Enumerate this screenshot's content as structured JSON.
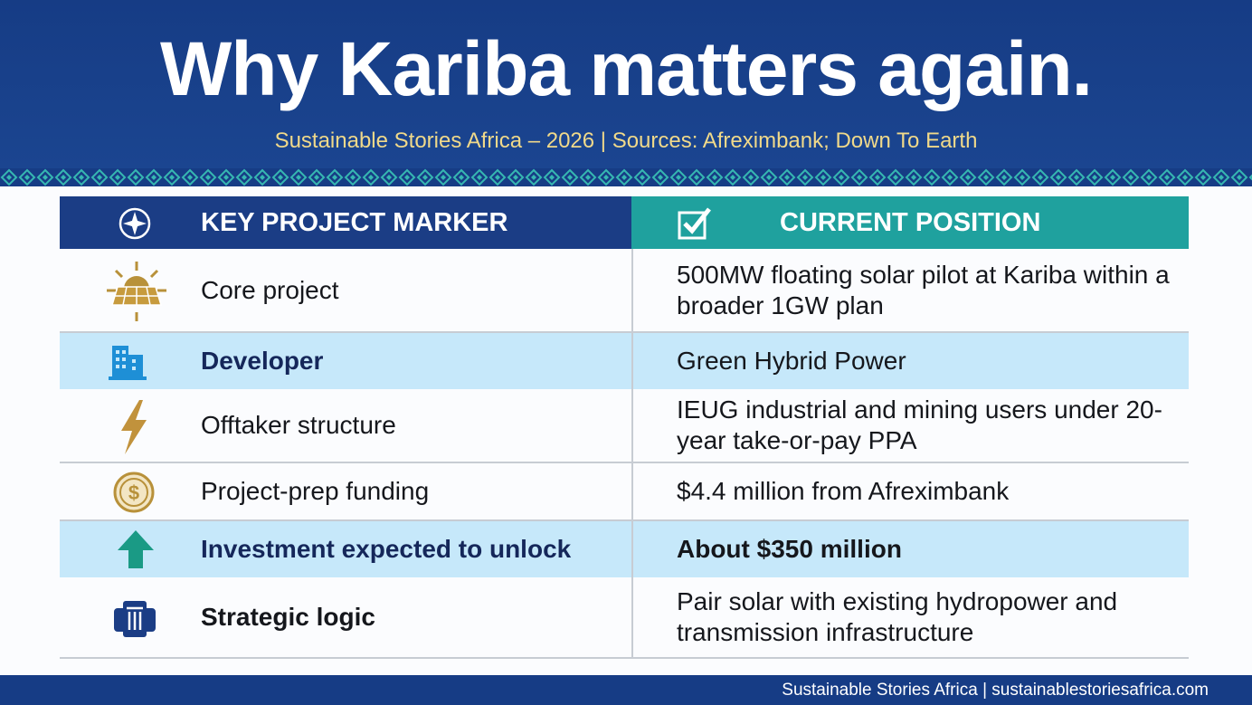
{
  "header": {
    "title": "Why Kariba matters again.",
    "subtitle": "Sustainable Stories Africa – 2026  |  Sources: Afreximbank; Down To Earth"
  },
  "table": {
    "headers": [
      "KEY PROJECT MARKER",
      "CURRENT POSITION"
    ],
    "rows": [
      [
        "Core project",
        "500MW floating solar pilot at Kariba within a broader 1GW plan"
      ],
      [
        "Developer",
        "Green Hybrid Power"
      ],
      [
        "Offtaker structure",
        "IEUG industrial and mining users under 20-year take-or-pay PPA"
      ],
      [
        "Project-prep funding",
        "$4.4 million from Afreximbank"
      ],
      [
        "Investment expected to unlock",
        "About $350 million"
      ],
      [
        "Strategic logic",
        "Pair solar with existing hydropower and transmission infrastructure"
      ]
    ]
  },
  "footer": "Sustainable Stories Africa | sustainablestoriesafrica.com"
}
